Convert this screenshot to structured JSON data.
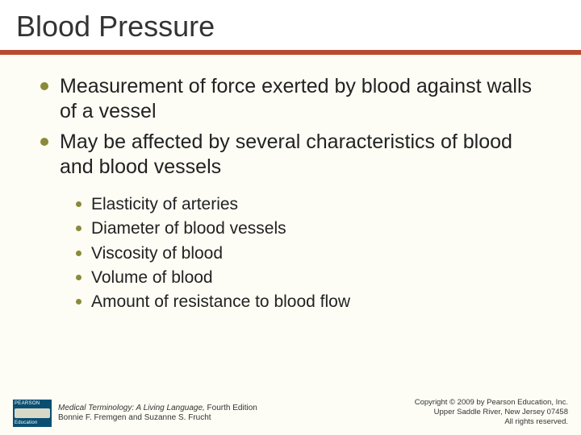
{
  "slide": {
    "title": "Blood Pressure",
    "title_color": "#333333",
    "title_fontsize": 36,
    "rule_color": "#b84a2f",
    "background_color": "#fdfdf5",
    "bullet_color": "#8a8a3a",
    "text_color": "#222222",
    "l1_fontsize": 25,
    "l2_fontsize": 21,
    "bullets_l1": [
      "Measurement of force exerted by blood against walls of a vessel",
      "May be affected by several characteristics of blood and blood vessels"
    ],
    "bullets_l2": [
      "Elasticity of arteries",
      "Diameter of blood vessels",
      "Viscosity of blood",
      "Volume of blood",
      "Amount of resistance to blood flow"
    ]
  },
  "footer": {
    "logo": {
      "top": "PEARSON",
      "bottom": "Education",
      "bg": "#0a4f72"
    },
    "book_title_italic": "Medical Terminology: A Living Language,",
    "book_edition": " Fourth Edition",
    "authors": "Bonnie F. Fremgen and Suzanne S. Frucht",
    "copyright": "Copyright © 2009 by Pearson Education, Inc.",
    "address": "Upper Saddle River, New Jersey 07458",
    "rights": "All rights reserved."
  }
}
